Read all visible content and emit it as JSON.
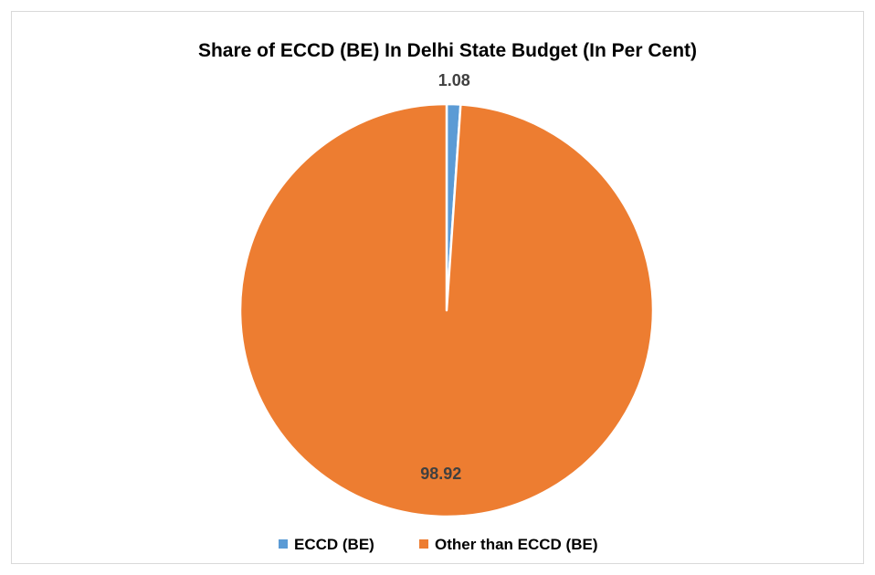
{
  "chart_data": {
    "type": "pie",
    "title": "Share of ECCD (BE) In Delhi State Budget (In Per Cent)",
    "categories": [
      "ECCD (BE)",
      "Other than ECCD (BE)"
    ],
    "values": [
      1.08,
      98.92
    ],
    "data_labels": [
      "1.08",
      "98.92"
    ],
    "colors": [
      "#5B9BD5",
      "#ED7D31"
    ],
    "slice_border_color": "#ffffff",
    "label_color": "#404040",
    "title_color": "#000000",
    "legend_position": "bottom",
    "legend": [
      {
        "label": "ECCD (BE)",
        "color": "#5B9BD5"
      },
      {
        "label": "Other than ECCD (BE)",
        "color": "#ED7D31"
      }
    ]
  }
}
